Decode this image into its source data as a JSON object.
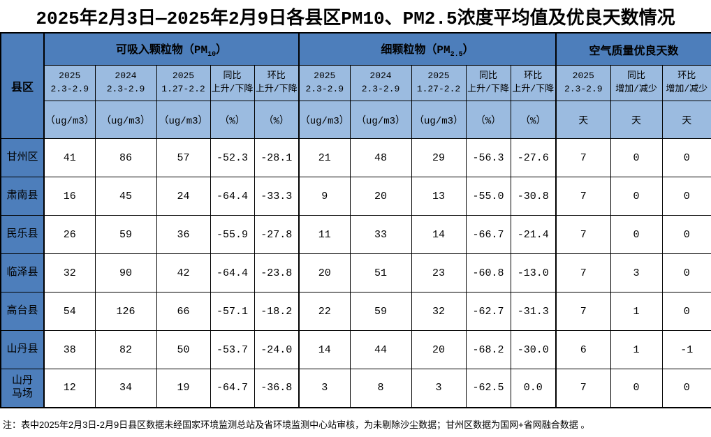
{
  "title": "2025年2月3日—2025年2月9日各县区PM10、PM2.5浓度平均值及优良天数情况",
  "table": {
    "county_header": "县区",
    "groups": [
      {
        "prefix": "可吸入颗粒物（PM",
        "sub": "10",
        "suffix": "）"
      },
      {
        "prefix": "细颗粒物（PM",
        "sub": "2.5",
        "suffix": "）"
      },
      {
        "label": "空气质量优良天数"
      }
    ],
    "subheaders": [
      "2025\n2.3-2.9",
      "2024\n2.3-2.9",
      "2025\n1.27-2.2",
      "同比\n上升/下降",
      "环比\n上升/下降",
      "2025\n2.3-2.9",
      "2024\n2.3-2.9",
      "2025\n1.27-2.2",
      "同比\n上升/下降",
      "环比\n上升/下降",
      "2025\n2.3-2.9",
      "同比\n增加/减少",
      "环比\n增加/减少"
    ],
    "units": [
      "（ug/m3）",
      "（ug/m3）",
      "（ug/m3）",
      "（%）",
      "（%）",
      "（ug/m3）",
      "（ug/m3）",
      "（ug/m3）",
      "（%）",
      "（%）",
      "天",
      "天",
      "天"
    ],
    "rows": [
      {
        "county": "甘州区",
        "values": [
          "41",
          "86",
          "57",
          "-52.3",
          "-28.1",
          "21",
          "48",
          "29",
          "-56.3",
          "-27.6",
          "7",
          "0",
          "0"
        ]
      },
      {
        "county": "肃南县",
        "values": [
          "16",
          "45",
          "24",
          "-64.4",
          "-33.3",
          "9",
          "20",
          "13",
          "-55.0",
          "-30.8",
          "7",
          "0",
          "0"
        ]
      },
      {
        "county": "民乐县",
        "values": [
          "26",
          "59",
          "36",
          "-55.9",
          "-27.8",
          "11",
          "33",
          "14",
          "-66.7",
          "-21.4",
          "7",
          "0",
          "0"
        ]
      },
      {
        "county": "临泽县",
        "values": [
          "32",
          "90",
          "42",
          "-64.4",
          "-23.8",
          "20",
          "51",
          "23",
          "-60.8",
          "-13.0",
          "7",
          "3",
          "0"
        ]
      },
      {
        "county": "高台县",
        "values": [
          "54",
          "126",
          "66",
          "-57.1",
          "-18.2",
          "22",
          "59",
          "32",
          "-62.7",
          "-31.3",
          "7",
          "1",
          "0"
        ]
      },
      {
        "county": "山丹县",
        "values": [
          "38",
          "82",
          "50",
          "-53.7",
          "-24.0",
          "14",
          "44",
          "20",
          "-68.2",
          "-30.0",
          "6",
          "1",
          "-1"
        ]
      },
      {
        "county": "山丹\n马场",
        "values": [
          "12",
          "34",
          "19",
          "-64.7",
          "-36.8",
          "3",
          "8",
          "3",
          "-62.5",
          "0.0",
          "7",
          "0",
          "0"
        ]
      }
    ]
  },
  "note": "注：表中2025年2月3日-2月9日县区数据未经国家环境监测总站及省环境监测中心站审核，为未剔除沙尘数据；甘州区数据为国网+省网融合数据 。",
  "colors": {
    "header_dark": "#4D7EBB",
    "header_light": "#9BBBE0",
    "border": "#000000"
  }
}
